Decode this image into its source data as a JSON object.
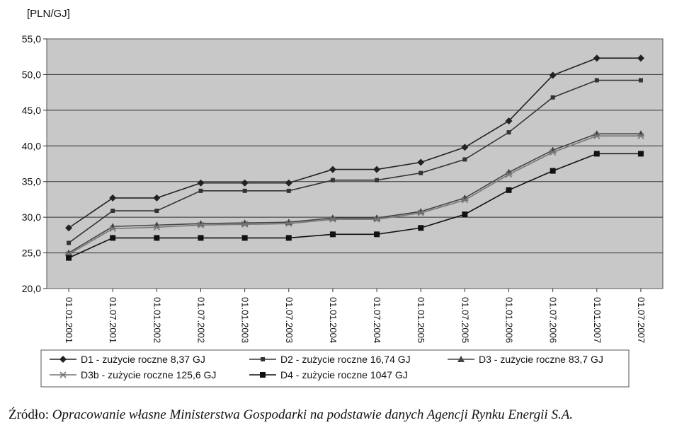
{
  "chart_data": {
    "type": "line",
    "ylabel": "[PLN/GJ]",
    "xlabel": "",
    "ylim": [
      20,
      55
    ],
    "yticks": [
      "20,0",
      "25,0",
      "30,0",
      "35,0",
      "40,0",
      "45,0",
      "50,0",
      "55,0"
    ],
    "categories": [
      "01.01.2001",
      "01.07.2001",
      "01.01.2002",
      "01.07.2002",
      "01.01.2003",
      "01.07.2003",
      "01.01.2004",
      "01.07.2004",
      "01.01.2005",
      "01.07.2005",
      "01.01.2006",
      "01.07.2006",
      "01.01.2007",
      "01.07.2007"
    ],
    "grid": "horizontal",
    "legend_position": "bottom",
    "series": [
      {
        "name": "D1   -  zużycie roczne 8,37 GJ",
        "marker": "diamond",
        "color": "#222222",
        "values": [
          28.5,
          32.7,
          32.7,
          34.8,
          34.8,
          34.8,
          36.7,
          36.7,
          37.7,
          39.8,
          43.5,
          49.9,
          52.3,
          52.3
        ]
      },
      {
        "name": "D2 -  zużycie roczne 16,74 GJ",
        "marker": "square-small",
        "color": "#333333",
        "values": [
          26.4,
          30.9,
          30.9,
          33.7,
          33.7,
          33.7,
          35.2,
          35.2,
          36.2,
          38.1,
          41.9,
          46.8,
          49.2,
          49.2
        ]
      },
      {
        "name": "D3 - zużycie roczne 83,7 GJ",
        "marker": "triangle",
        "color": "#444444",
        "values": [
          25.0,
          28.7,
          28.9,
          29.1,
          29.2,
          29.3,
          29.9,
          29.9,
          30.8,
          32.7,
          36.3,
          39.4,
          41.7,
          41.7
        ]
      },
      {
        "name": "D3b - zużycie roczne 125,6 GJ",
        "marker": "asterisk",
        "color": "#777777",
        "values": [
          24.8,
          28.4,
          28.6,
          28.9,
          29.0,
          29.1,
          29.7,
          29.7,
          30.6,
          32.4,
          36.0,
          39.1,
          41.4,
          41.4
        ]
      },
      {
        "name": "D4 - zużycie roczne 1047 GJ",
        "marker": "square",
        "color": "#111111",
        "values": [
          24.3,
          27.1,
          27.1,
          27.1,
          27.1,
          27.1,
          27.6,
          27.6,
          28.5,
          30.4,
          33.8,
          36.5,
          38.9,
          38.9
        ]
      }
    ]
  },
  "source": {
    "prefix": "Źródło:",
    "text": " Opracowanie własne Ministerstwa Gospodarki na podstawie danych Agencji Rynku Energii S.A."
  }
}
